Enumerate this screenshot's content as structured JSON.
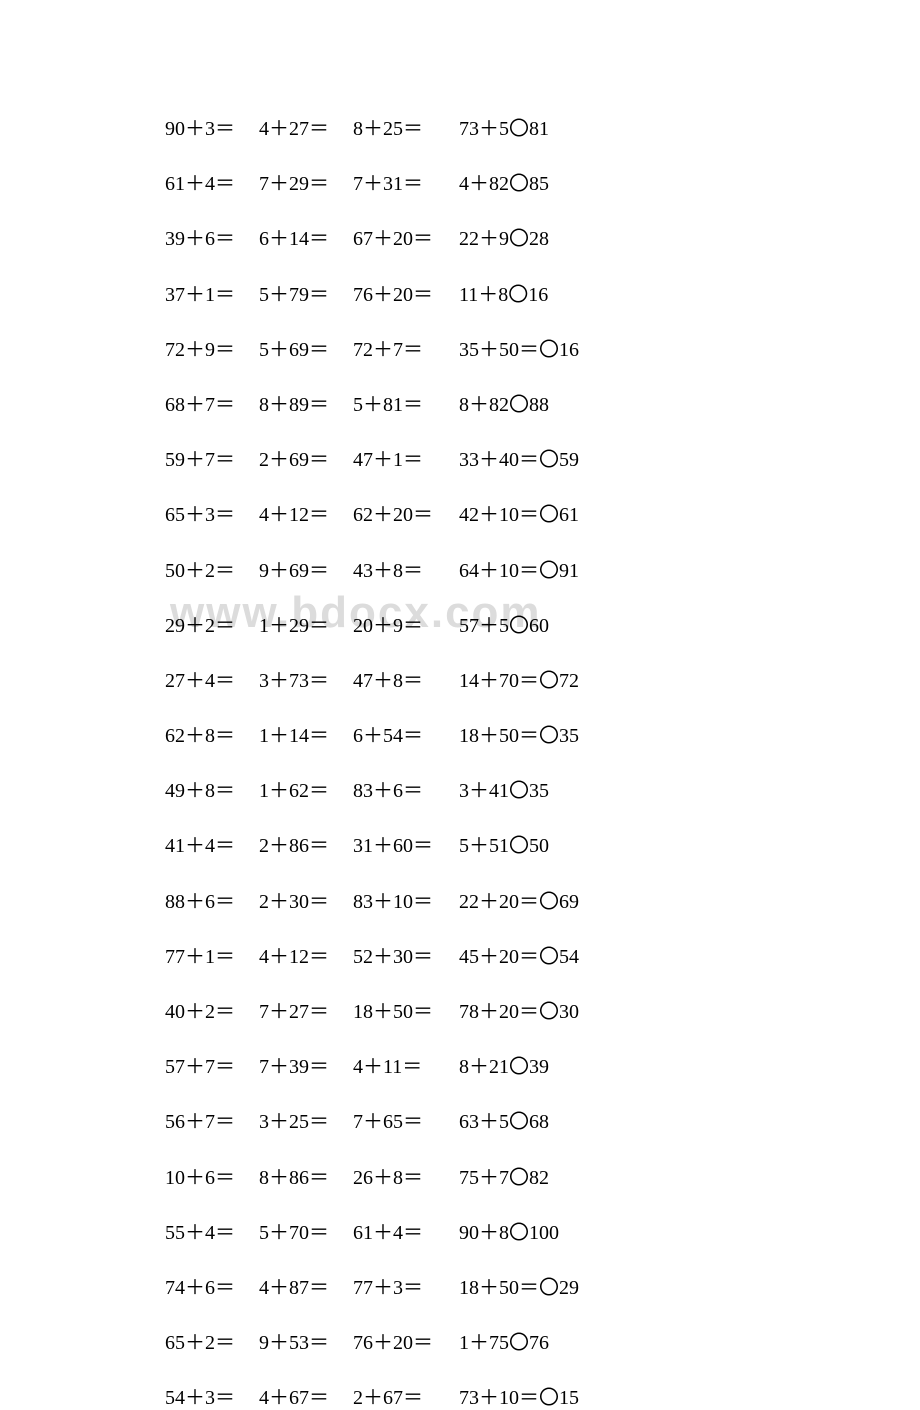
{
  "watermark_text": "www.bdocx.com",
  "watermark_color": "#dcdcdc",
  "text_color": "#000000",
  "background_color": "#ffffff",
  "font_size": 20,
  "plus_sign": "＋",
  "equals_sign": "＝",
  "circle_sign": "〇",
  "rows": [
    {
      "c1": "90＋3＝",
      "c2": "4＋27＝",
      "c3": "8＋25＝",
      "c4": "73＋5〇81"
    },
    {
      "c1": "61＋4＝",
      "c2": "7＋29＝",
      "c3": "7＋31＝",
      "c4": "4＋82〇85"
    },
    {
      "c1": "39＋6＝",
      "c2": "6＋14＝",
      "c3": "67＋20＝",
      "c4": "22＋9〇28"
    },
    {
      "c1": "37＋1＝",
      "c2": "5＋79＝",
      "c3": "76＋20＝",
      "c4": "11＋8〇16"
    },
    {
      "c1": "72＋9＝",
      "c2": "5＋69＝",
      "c3": "72＋7＝",
      "c4": "35＋50＝〇16"
    },
    {
      "c1": "68＋7＝",
      "c2": "8＋89＝",
      "c3": "5＋81＝",
      "c4": "8＋82〇88"
    },
    {
      "c1": "59＋7＝",
      "c2": "2＋69＝",
      "c3": "47＋1＝",
      "c4": "33＋40＝〇59"
    },
    {
      "c1": "65＋3＝",
      "c2": "4＋12＝",
      "c3": "62＋20＝",
      "c4": "42＋10＝〇61"
    },
    {
      "c1": "50＋2＝",
      "c2": "9＋69＝",
      "c3": "43＋8＝",
      "c4": "64＋10＝〇91"
    },
    {
      "c1": "29＋2＝",
      "c2": "1＋29＝",
      "c3": "20＋9＝",
      "c4": "57＋5〇60"
    },
    {
      "c1": "27＋4＝",
      "c2": "3＋73＝",
      "c3": "47＋8＝",
      "c4": "14＋70＝〇72"
    },
    {
      "c1": "62＋8＝",
      "c2": "1＋14＝",
      "c3": "6＋54＝",
      "c4": "18＋50＝〇35"
    },
    {
      "c1": "49＋8＝",
      "c2": "1＋62＝",
      "c3": "83＋6＝",
      "c4": "3＋41〇35"
    },
    {
      "c1": "41＋4＝",
      "c2": "2＋86＝",
      "c3": "31＋60＝",
      "c4": "5＋51〇50"
    },
    {
      "c1": "88＋6＝",
      "c2": "2＋30＝",
      "c3": "83＋10＝",
      "c4": "22＋20＝〇69"
    },
    {
      "c1": "77＋1＝",
      "c2": "4＋12＝",
      "c3": "52＋30＝",
      "c4": "45＋20＝〇54"
    },
    {
      "c1": "40＋2＝",
      "c2": "7＋27＝",
      "c3": "18＋50＝",
      "c4": "78＋20＝〇30"
    },
    {
      "c1": "57＋7＝",
      "c2": "7＋39＝",
      "c3": "4＋11＝",
      "c4": "8＋21〇39"
    },
    {
      "c1": "56＋7＝",
      "c2": "3＋25＝",
      "c3": "7＋65＝",
      "c4": "63＋5〇68"
    },
    {
      "c1": "10＋6＝",
      "c2": "8＋86＝",
      "c3": "26＋8＝",
      "c4": "75＋7〇82"
    },
    {
      "c1": "55＋4＝",
      "c2": "5＋70＝",
      "c3": "61＋4＝",
      "c4": "90＋8〇100"
    },
    {
      "c1": "74＋6＝",
      "c2": "4＋87＝",
      "c3": "77＋3＝",
      "c4": "18＋50＝〇29"
    },
    {
      "c1": "65＋2＝",
      "c2": "9＋53＝",
      "c3": "76＋20＝",
      "c4": "1＋75〇76"
    },
    {
      "c1": "54＋3＝",
      "c2": "4＋67＝",
      "c3": "2＋67＝",
      "c4": "73＋10＝〇15"
    }
  ]
}
